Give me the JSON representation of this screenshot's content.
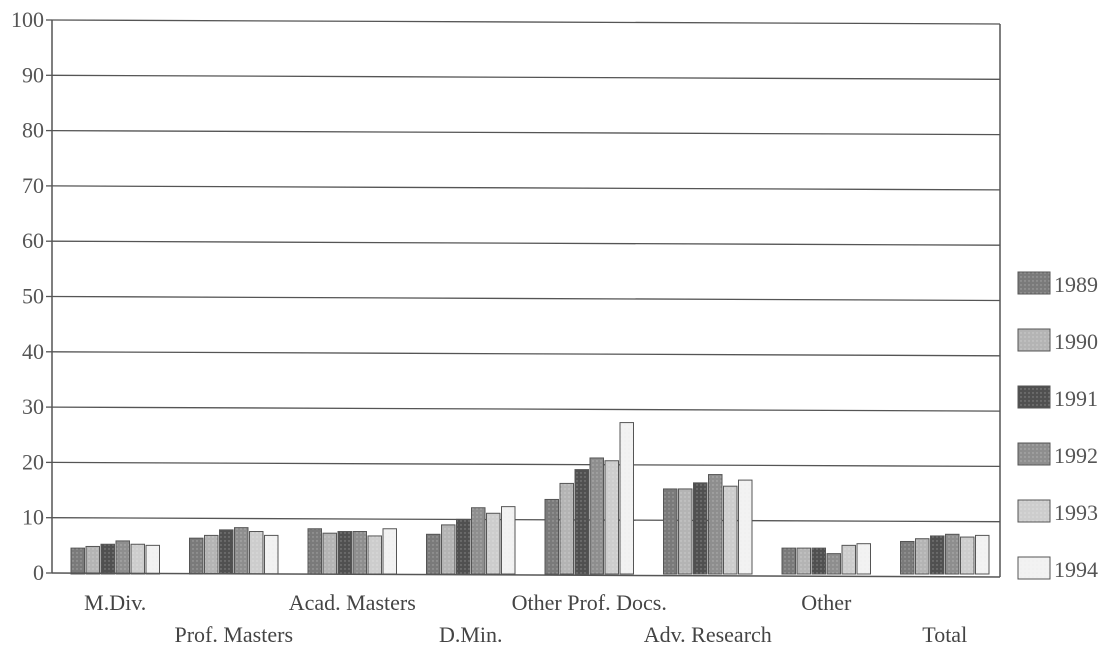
{
  "chart_data": {
    "type": "bar",
    "title": "",
    "xlabel": "",
    "ylabel": "",
    "ylim": [
      0,
      100
    ],
    "yticks": [
      "0",
      "10",
      "20",
      "30",
      "40",
      "50",
      "60",
      "70",
      "80",
      "90",
      "100"
    ],
    "grid": true,
    "legend_position": "right",
    "categories": [
      "M.Div.",
      "Prof. Masters",
      "Acad. Masters",
      "D.Min.",
      "Other Prof. Docs.",
      "Adv. Research",
      "Other",
      "Total"
    ],
    "series": [
      {
        "name": "1989",
        "color": "#7a7a7a",
        "values": [
          4.5,
          6.3,
          8.0,
          7.0,
          13.3,
          15.2,
          4.5,
          5.7
        ]
      },
      {
        "name": "1990",
        "color": "#b4b4b4",
        "values": [
          4.8,
          6.8,
          7.2,
          8.7,
          16.2,
          15.2,
          4.5,
          6.2
        ]
      },
      {
        "name": "1991",
        "color": "#505050",
        "values": [
          5.2,
          7.8,
          7.5,
          9.7,
          18.7,
          16.3,
          4.5,
          6.7
        ]
      },
      {
        "name": "1992",
        "color": "#8e8e8e",
        "values": [
          5.8,
          8.2,
          7.5,
          11.8,
          20.8,
          17.8,
          3.5,
          7.0
        ]
      },
      {
        "name": "1993",
        "color": "#cdcdcd",
        "values": [
          5.2,
          7.5,
          6.7,
          10.8,
          20.3,
          15.7,
          5.0,
          6.5
        ]
      },
      {
        "name": "1994",
        "color": "#f2f2f2",
        "values": [
          5.0,
          6.8,
          8.0,
          12.0,
          27.2,
          16.8,
          5.3,
          6.8
        ]
      }
    ]
  }
}
